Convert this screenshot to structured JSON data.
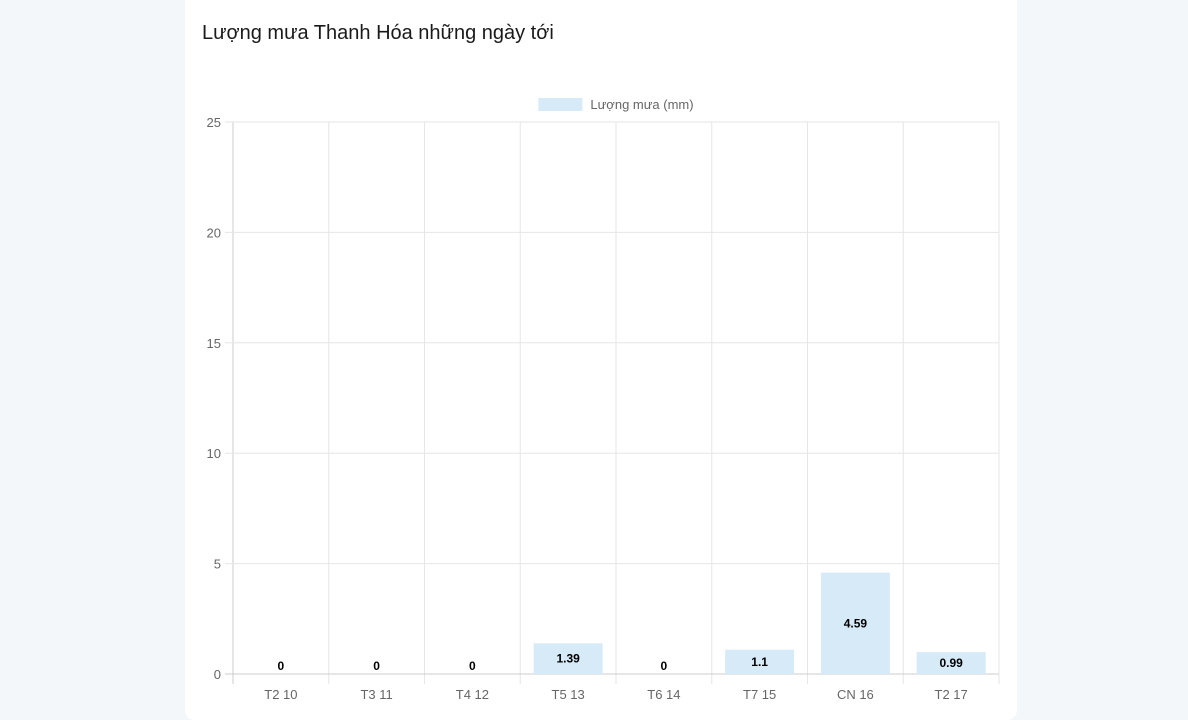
{
  "card": {
    "title": "Lượng mưa Thanh Hóa những ngày tới"
  },
  "colors": {
    "bar_fill": "#d6eaf8",
    "grid": "#e6e6e6",
    "axis": "#cccccc",
    "page_bg": "#f3f7f9"
  },
  "chart_data": {
    "type": "bar",
    "categories": [
      "T2 10",
      "T3 11",
      "T4 12",
      "T5 13",
      "T6 14",
      "T7 15",
      "CN 16",
      "T2 17"
    ],
    "series": [
      {
        "name": "Lượng mưa (mm)",
        "values": [
          0,
          0,
          0,
          1.39,
          0,
          1.1,
          4.59,
          0.99
        ]
      }
    ],
    "data_labels": [
      "0",
      "0",
      "0",
      "1.39",
      "0",
      "1.1",
      "4.59",
      "0.99"
    ],
    "y_ticks": [
      0,
      5,
      10,
      15,
      20,
      25
    ],
    "ylim": [
      0,
      25
    ],
    "grid": true,
    "legend": "top-center"
  }
}
